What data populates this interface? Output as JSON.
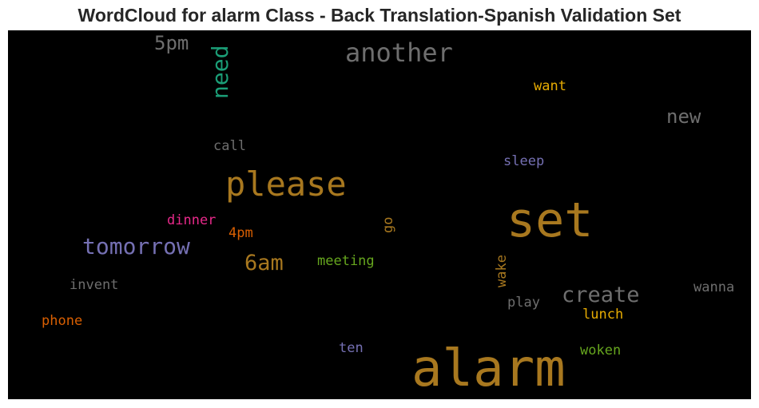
{
  "title": "WordCloud for alarm Class - Back Translation-Spanish Validation Set",
  "colors": {
    "background": "#000000",
    "gray": "#6e6e6e",
    "gold": "#a8781f",
    "green": "#1b9e77",
    "purple": "#7570b3",
    "magenta": "#e7298a",
    "orange": "#d95f02",
    "olive": "#66a61e",
    "yellow": "#e6ab02"
  },
  "words": {
    "alarm": "alarm",
    "set": "set",
    "please": "please",
    "another": "another",
    "tomorrow": "tomorrow",
    "need": "need",
    "create": "create",
    "sixam": "6am",
    "fivepm": "5pm",
    "new": "new",
    "want": "want",
    "call": "call",
    "sleep": "sleep",
    "dinner": "dinner",
    "go": "go",
    "fourpm": "4pm",
    "meeting": "meeting",
    "wake": "wake",
    "invent": "invent",
    "play": "play",
    "wanna": "wanna",
    "lunch": "lunch",
    "phone": "phone",
    "ten": "ten",
    "woken": "woken"
  }
}
